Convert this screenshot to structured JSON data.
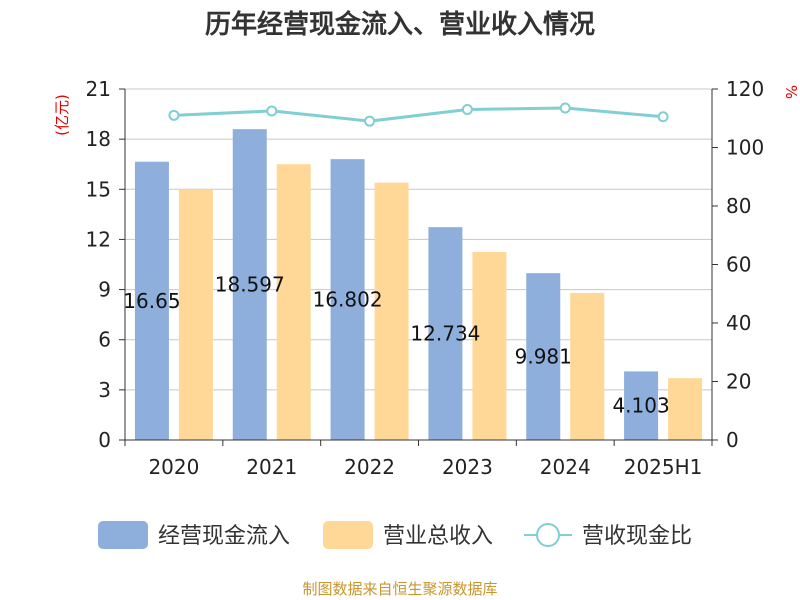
{
  "chart_data": {
    "type": "bar",
    "title": "历年经营现金流入、营业收入情况",
    "categories": [
      "2020",
      "2021",
      "2022",
      "2023",
      "2024",
      "2025H1"
    ],
    "series": [
      {
        "name": "经营现金流入",
        "type": "bar",
        "axis": "left",
        "color": "#8eaedb",
        "values": [
          16.65,
          18.597,
          16.802,
          12.734,
          9.981,
          4.103
        ],
        "labels": [
          "16.65",
          "18.597",
          "16.802",
          "12.734",
          "9.981",
          "4.103"
        ]
      },
      {
        "name": "营业总收入",
        "type": "bar",
        "axis": "left",
        "color": "#ffd898",
        "values": [
          15.0,
          16.5,
          15.4,
          11.25,
          8.8,
          3.7
        ]
      },
      {
        "name": "营收现金比",
        "type": "line",
        "axis": "right",
        "color": "#7fcfd3",
        "values": [
          111,
          112.5,
          109,
          113,
          113.5,
          110.5
        ]
      }
    ],
    "y_left": {
      "unit": "(亿元)",
      "ylim": [
        0,
        21
      ],
      "ticks": [
        "0",
        "3",
        "6",
        "9",
        "12",
        "15",
        "18",
        "21"
      ]
    },
    "y_right": {
      "unit": "%",
      "ylim": [
        0,
        120
      ],
      "ticks": [
        "0",
        "20",
        "40",
        "60",
        "80",
        "100",
        "120"
      ]
    },
    "grid": true,
    "legend_position": "bottom"
  },
  "source": "制图数据来自恒生聚源数据库"
}
